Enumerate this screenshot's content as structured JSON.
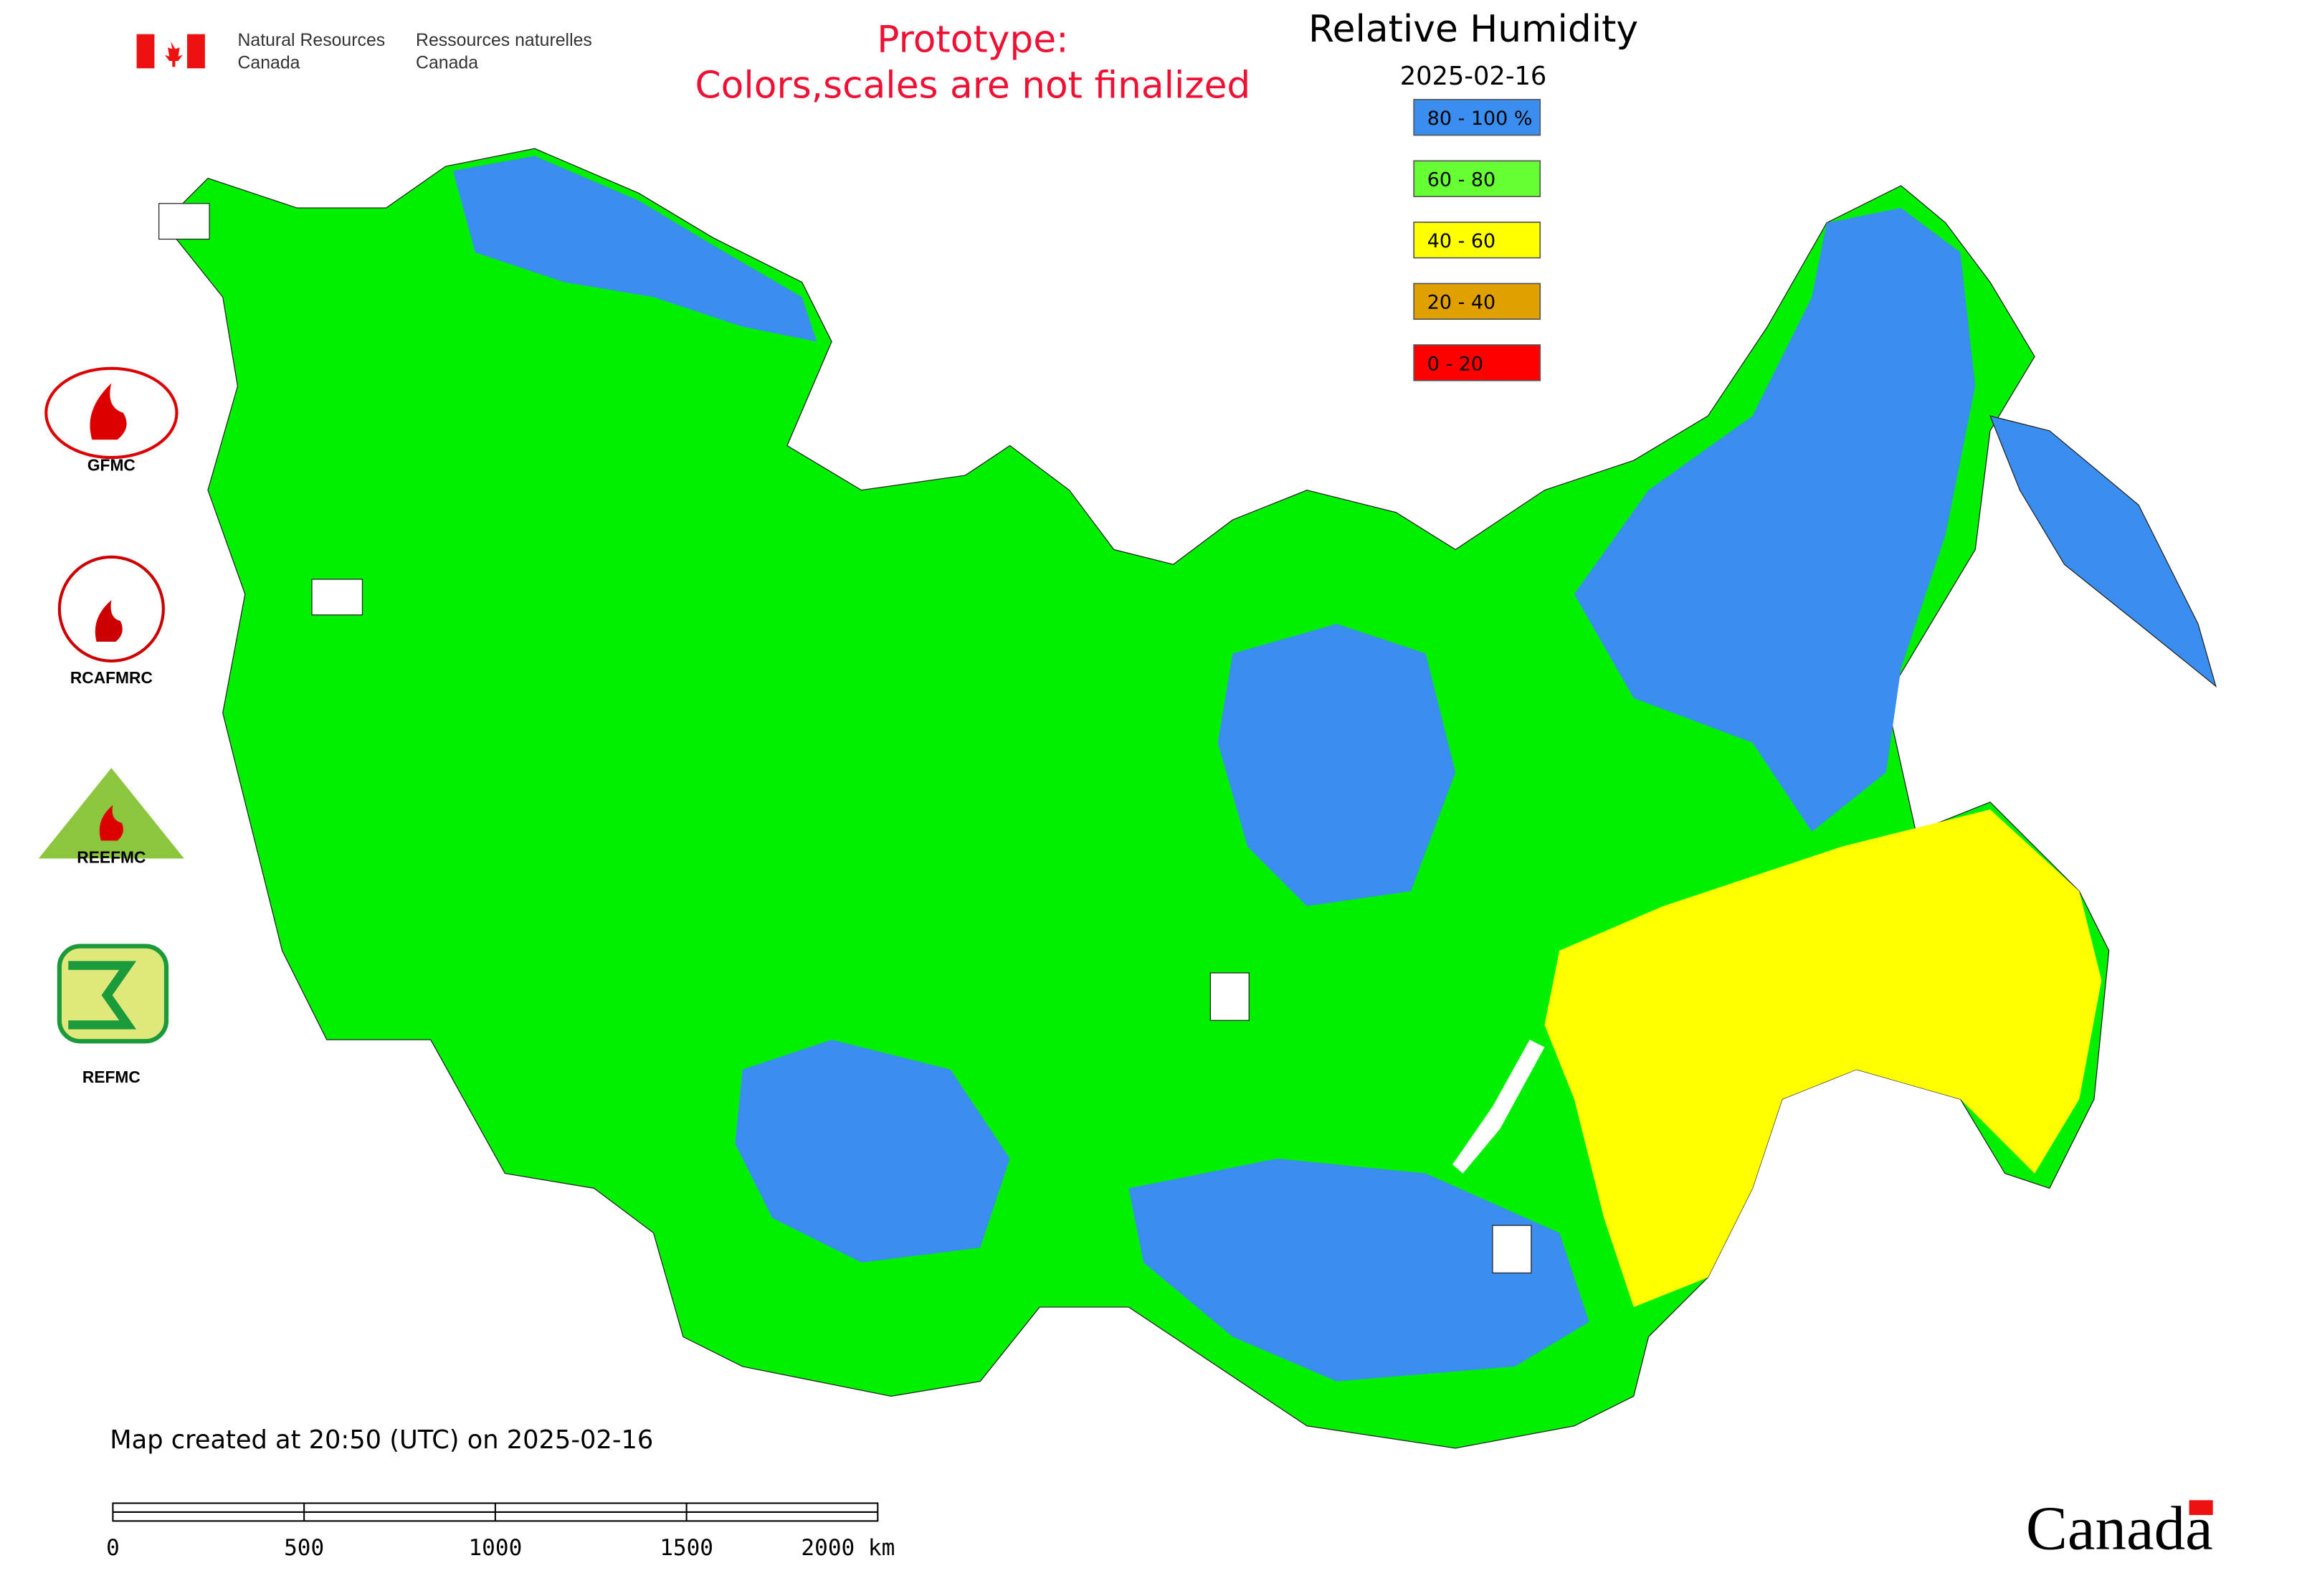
{
  "header": {
    "agency_en_line1": "Natural Resources",
    "agency_en_line2": "Canada",
    "agency_fr_line1": "Ressources naturelles",
    "agency_fr_line2": "Canada"
  },
  "notice": {
    "line1": "Prototype:",
    "line2": "Colors,scales are not finalized"
  },
  "title": "Relative Humidity",
  "date": "2025-02-16",
  "legend": [
    {
      "label": "80 - 100 %",
      "color": "#3a8ef0"
    },
    {
      "label": "60 - 80",
      "color": "#66ff33"
    },
    {
      "label": "40 - 60",
      "color": "#ffff00"
    },
    {
      "label": "20 - 40",
      "color": "#e0a000"
    },
    {
      "label": "0 - 20",
      "color": "#ff0000"
    }
  ],
  "logos": {
    "gfmc": "GFMC",
    "rcafmrc": "RCAFMRC",
    "reefmc": "REEFMC",
    "refmc": "REFMC"
  },
  "footer": {
    "created": "Map created at 20:50 (UTC) on 2025-02-16",
    "scale_labels": [
      "0",
      "500",
      "1000",
      "1500",
      "2000 km"
    ],
    "wordmark": "Canada"
  }
}
